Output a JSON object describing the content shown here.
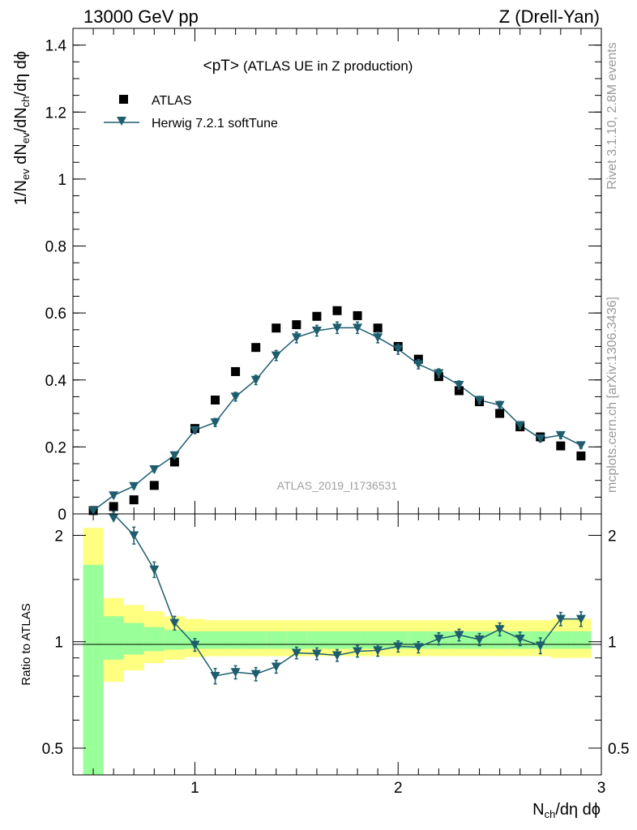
{
  "header": {
    "energy": "13000 GeV pp",
    "process": "Z (Drell-Yan)"
  },
  "side": {
    "rivet": "Rivet 3.1.10,  2.8M events",
    "mcplots": "mcplots.cern.ch [arXiv:1306.3436]"
  },
  "colors": {
    "data": "#000000",
    "mc": "#1d5d6e",
    "band_outer": "#ffff80",
    "band_inner": "#99ff99"
  },
  "chart_data": [
    {
      "type": "scatter",
      "title": "<pT>",
      "subtitle": "(ATLAS UE in Z production)",
      "watermark": "ATLAS_2019_I1736531",
      "xlabel": "N_ch/dη dϕ",
      "ylabel": "1/N_ev dN_ev/dN_ch/dη dϕ",
      "xlim": [
        0.4,
        3.0
      ],
      "ylim": [
        0.0,
        1.45
      ],
      "yticks": [
        {
          "value": 0,
          "label": "0"
        },
        {
          "value": 0.2,
          "label": "0.2"
        },
        {
          "value": 0.4,
          "label": "0.4"
        },
        {
          "value": 0.6,
          "label": "0.6"
        },
        {
          "value": 0.8,
          "label": "0.8"
        },
        {
          "value": 1.0,
          "label": "1"
        },
        {
          "value": 1.2,
          "label": "1.2"
        },
        {
          "value": 1.4,
          "label": "1.4"
        }
      ],
      "x": [
        0.5,
        0.6,
        0.7,
        0.8,
        0.9,
        1.0,
        1.1,
        1.2,
        1.3,
        1.4,
        1.5,
        1.6,
        1.7,
        1.8,
        1.9,
        2.0,
        2.1,
        2.2,
        2.3,
        2.4,
        2.5,
        2.6,
        2.7,
        2.8,
        2.9
      ],
      "series": [
        {
          "name": "ATLAS",
          "marker": "square",
          "values": [
            0.01,
            0.022,
            0.042,
            0.085,
            0.155,
            0.255,
            0.34,
            0.425,
            0.497,
            0.555,
            0.565,
            0.59,
            0.607,
            0.592,
            0.555,
            0.5,
            0.462,
            0.41,
            0.368,
            0.335,
            0.3,
            0.26,
            0.23,
            0.203,
            0.173
          ]
        },
        {
          "name": "Herwig 7.2.1 softTune",
          "marker": "triangle-down",
          "values": [
            0.01,
            0.055,
            0.083,
            0.133,
            0.175,
            0.25,
            0.273,
            0.35,
            0.4,
            0.473,
            0.527,
            0.547,
            0.556,
            0.556,
            0.527,
            0.492,
            0.447,
            0.42,
            0.385,
            0.34,
            0.325,
            0.265,
            0.225,
            0.235,
            0.205
          ],
          "errors": [
            0.003,
            0.006,
            0.007,
            0.008,
            0.009,
            0.01,
            0.012,
            0.013,
            0.014,
            0.015,
            0.016,
            0.016,
            0.017,
            0.017,
            0.016,
            0.015,
            0.014,
            0.013,
            0.012,
            0.011,
            0.011,
            0.01,
            0.01,
            0.01,
            0.009
          ]
        }
      ]
    },
    {
      "type": "scatter",
      "ylabel": "Ratio to ATLAS",
      "xlabel": "N_ch/dη dϕ",
      "xlim": [
        0.4,
        3.0
      ],
      "ylim": [
        0.42,
        2.3
      ],
      "log_y": true,
      "xticks": [
        {
          "value": 1,
          "label": "1"
        },
        {
          "value": 2,
          "label": "2"
        },
        {
          "value": 3,
          "label": "3"
        }
      ],
      "yticks": [
        {
          "value": 0.5,
          "label": "0.5"
        },
        {
          "value": 1,
          "label": "1"
        },
        {
          "value": 2,
          "label": "2"
        }
      ],
      "x": [
        0.5,
        0.6,
        0.7,
        0.8,
        0.9,
        1.0,
        1.1,
        1.2,
        1.3,
        1.4,
        1.5,
        1.6,
        1.7,
        1.8,
        1.9,
        2.0,
        2.1,
        2.2,
        2.3,
        2.4,
        2.5,
        2.6,
        2.7,
        2.8,
        2.9
      ],
      "reference": 1,
      "bands": {
        "outer": [
          [
            0.45,
            2.1
          ],
          [
            0.77,
            1.33
          ],
          [
            0.83,
            1.27
          ],
          [
            0.87,
            1.22
          ],
          [
            0.89,
            1.18
          ],
          [
            0.905,
            1.16
          ],
          [
            0.91,
            1.15
          ],
          [
            0.91,
            1.15
          ],
          [
            0.91,
            1.15
          ],
          [
            0.91,
            1.15
          ],
          [
            0.91,
            1.15
          ],
          [
            0.91,
            1.15
          ],
          [
            0.91,
            1.15
          ],
          [
            0.91,
            1.15
          ],
          [
            0.91,
            1.15
          ],
          [
            0.91,
            1.15
          ],
          [
            0.91,
            1.15
          ],
          [
            0.91,
            1.15
          ],
          [
            0.91,
            1.15
          ],
          [
            0.91,
            1.15
          ],
          [
            0.91,
            1.15
          ],
          [
            0.91,
            1.15
          ],
          [
            0.91,
            1.15
          ],
          [
            0.9,
            1.16
          ],
          [
            0.9,
            1.16
          ]
        ],
        "inner": [
          [
            0.42,
            1.65
          ],
          [
            0.89,
            1.18
          ],
          [
            0.92,
            1.13
          ],
          [
            0.94,
            1.1
          ],
          [
            0.95,
            1.08
          ],
          [
            0.955,
            1.07
          ],
          [
            0.955,
            1.07
          ],
          [
            0.955,
            1.07
          ],
          [
            0.955,
            1.07
          ],
          [
            0.955,
            1.07
          ],
          [
            0.955,
            1.07
          ],
          [
            0.955,
            1.07
          ],
          [
            0.955,
            1.07
          ],
          [
            0.955,
            1.07
          ],
          [
            0.955,
            1.07
          ],
          [
            0.955,
            1.07
          ],
          [
            0.955,
            1.07
          ],
          [
            0.955,
            1.07
          ],
          [
            0.955,
            1.07
          ],
          [
            0.955,
            1.07
          ],
          [
            0.955,
            1.07
          ],
          [
            0.955,
            1.07
          ],
          [
            0.955,
            1.07
          ],
          [
            0.955,
            1.07
          ],
          [
            0.955,
            1.07
          ]
        ]
      },
      "series": [
        {
          "name": "Herwig 7.2.1 softTune / ATLAS",
          "marker": "triangle-down",
          "values": [
            null,
            2.45,
            2.0,
            1.6,
            1.13,
            0.98,
            0.8,
            0.82,
            0.81,
            0.85,
            0.93,
            0.925,
            0.915,
            0.94,
            0.945,
            0.97,
            0.965,
            1.02,
            1.045,
            1.015,
            1.085,
            1.02,
            0.975,
            1.16,
            1.16
          ],
          "errors": [
            0,
            0.12,
            0.11,
            0.08,
            0.05,
            0.04,
            0.04,
            0.035,
            0.035,
            0.035,
            0.035,
            0.035,
            0.035,
            0.035,
            0.035,
            0.035,
            0.035,
            0.04,
            0.04,
            0.04,
            0.045,
            0.045,
            0.05,
            0.05,
            0.055
          ]
        }
      ]
    }
  ]
}
